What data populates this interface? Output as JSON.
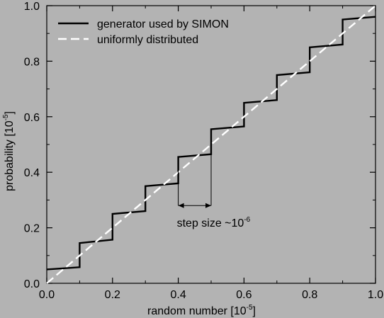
{
  "chart_data": {
    "type": "line",
    "xlabel": "random number [10",
    "xlabel_exp": "-5",
    "xlabel_end": "]",
    "ylabel": "probability [10",
    "ylabel_exp": "-5",
    "ylabel_end": "]",
    "xlim": [
      0,
      1
    ],
    "ylim": [
      0,
      1
    ],
    "x_ticks": [
      0.0,
      0.2,
      0.4,
      0.6,
      0.8,
      1.0
    ],
    "y_ticks": [
      0.0,
      0.2,
      0.4,
      0.6,
      0.8,
      1.0
    ],
    "x_tick_labels": [
      "0.0",
      "0.2",
      "0.4",
      "0.6",
      "0.8",
      "1.0"
    ],
    "y_tick_labels": [
      "0.0",
      "0.2",
      "0.4",
      "0.6",
      "0.8",
      "1.0"
    ],
    "grid": false,
    "legend_position": "top-left",
    "series": [
      {
        "name": "generator used by SIMON",
        "style": "solid",
        "color": "#000000",
        "steps": [
          {
            "x0": 0.0,
            "x1": 0.1,
            "y0": 0.05,
            "y1": 0.058
          },
          {
            "x0": 0.1,
            "x1": 0.2,
            "y0": 0.145,
            "y1": 0.157
          },
          {
            "x0": 0.2,
            "x1": 0.3,
            "y0": 0.25,
            "y1": 0.26
          },
          {
            "x0": 0.3,
            "x1": 0.4,
            "y0": 0.35,
            "y1": 0.36
          },
          {
            "x0": 0.4,
            "x1": 0.5,
            "y0": 0.455,
            "y1": 0.465
          },
          {
            "x0": 0.5,
            "x1": 0.6,
            "y0": 0.555,
            "y1": 0.565
          },
          {
            "x0": 0.6,
            "x1": 0.7,
            "y0": 0.65,
            "y1": 0.66
          },
          {
            "x0": 0.7,
            "x1": 0.8,
            "y0": 0.75,
            "y1": 0.76
          },
          {
            "x0": 0.8,
            "x1": 0.9,
            "y0": 0.85,
            "y1": 0.86
          },
          {
            "x0": 0.9,
            "x1": 1.0,
            "y0": 0.95,
            "y1": 0.96
          }
        ]
      },
      {
        "name": "uniformly distributed",
        "style": "dashed",
        "color": "#ffffff",
        "x": [
          0.0,
          1.0
        ],
        "y": [
          0.0,
          1.0
        ]
      }
    ],
    "annotation": {
      "text": "step size ~10",
      "exp": "-6",
      "x_from": 0.4,
      "x_to": 0.5,
      "y": 0.28
    }
  }
}
